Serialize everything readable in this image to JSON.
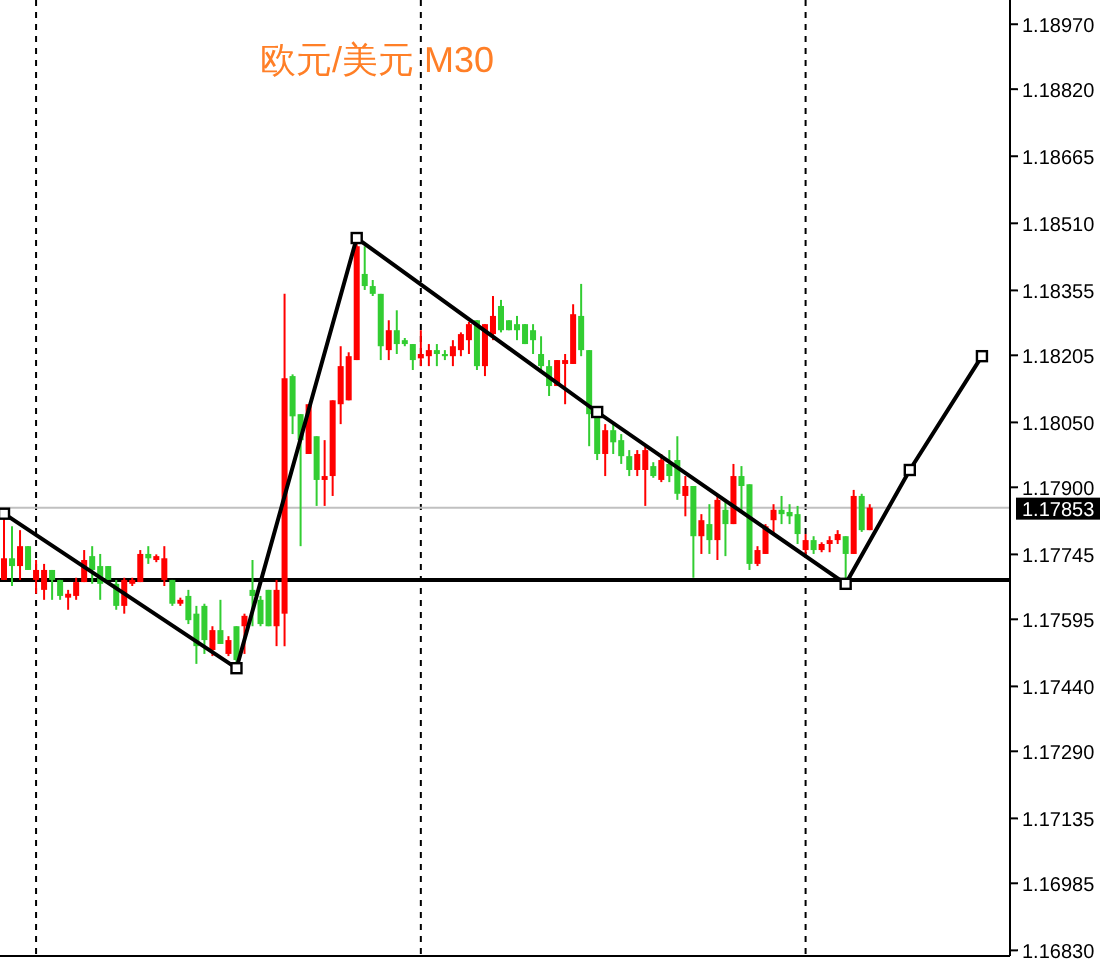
{
  "chart_data": {
    "type": "candlestick",
    "title": "欧元/美元 M30",
    "categories": [
      null,
      null,
      null,
      null,
      null,
      null,
      null,
      null,
      null,
      null,
      null,
      null,
      null,
      null,
      null,
      null,
      null,
      null,
      null,
      null,
      null,
      null,
      null,
      null,
      null,
      null,
      null,
      null,
      null,
      null,
      null,
      null,
      null,
      null,
      null,
      null,
      null,
      null,
      null,
      null,
      null,
      null,
      null,
      null,
      null,
      null,
      null,
      null,
      null,
      null,
      null,
      null,
      null,
      null,
      null,
      null,
      null,
      null,
      null,
      null,
      null,
      null,
      null,
      null,
      null,
      null,
      null,
      null,
      null,
      null,
      null,
      null,
      null,
      null,
      null,
      null,
      null,
      null,
      null,
      null,
      null,
      null,
      null,
      null,
      null,
      null,
      null,
      null,
      null,
      null,
      null,
      null,
      null,
      null,
      null,
      null,
      null,
      null,
      null,
      null,
      null,
      null,
      null,
      null,
      null,
      null,
      null,
      null,
      null,
      null,
      null,
      null,
      null,
      null,
      null,
      null,
      null,
      null,
      null,
      null,
      null,
      null,
      null,
      null,
      null,
      null
    ],
    "ohlc": [
      [
        1.17686,
        1.17833,
        1.17686,
        1.17736
      ],
      [
        1.17736,
        1.1781,
        1.17672,
        1.17718
      ],
      [
        1.17718,
        1.17801,
        1.17686,
        1.17764
      ],
      [
        1.17764,
        1.17764,
        1.17709,
        1.17709
      ],
      [
        1.17686,
        1.17732,
        1.17654,
        1.17709
      ],
      [
        1.17663,
        1.17723,
        1.1764,
        1.17709
      ],
      [
        1.17709,
        1.17709,
        1.1764,
        1.17686
      ],
      [
        1.17686,
        1.17686,
        1.1764,
        1.17649
      ],
      [
        1.17645,
        1.17663,
        1.17617,
        1.17654
      ],
      [
        1.17649,
        1.17691,
        1.1764,
        1.17681
      ],
      [
        1.17681,
        1.17755,
        1.17681,
        1.17732
      ],
      [
        1.17741,
        1.17764,
        1.17677,
        1.17709
      ],
      [
        1.17718,
        1.17746,
        1.1764,
        1.17677
      ],
      [
        1.17718,
        1.17718,
        1.17686,
        1.17686
      ],
      [
        1.17677,
        1.17686,
        1.17617,
        1.17626
      ],
      [
        1.17626,
        1.17691,
        1.17608,
        1.17686
      ],
      [
        1.17677,
        1.17691,
        1.17672,
        1.17686
      ],
      [
        1.17681,
        1.17755,
        1.17681,
        1.17746
      ],
      [
        1.17746,
        1.17764,
        1.17723,
        1.17736
      ],
      [
        1.17732,
        1.17745,
        1.17727,
        1.17741
      ],
      [
        1.17686,
        1.17764,
        1.17672,
        1.17736
      ],
      [
        1.17686,
        1.17686,
        1.17626,
        1.17631
      ],
      [
        1.17631,
        1.17645,
        1.17626,
        1.1764
      ],
      [
        1.17649,
        1.17663,
        1.17584,
        1.17593
      ],
      [
        1.17608,
        1.17626,
        1.17492,
        1.17533
      ],
      [
        1.17626,
        1.17631,
        1.17515,
        1.17547
      ],
      [
        1.17524,
        1.17579,
        1.1751,
        1.1757
      ],
      [
        1.1757,
        1.1764,
        1.17538,
        1.17538
      ],
      [
        1.17515,
        1.17556,
        1.1751,
        1.17547
      ],
      [
        1.17579,
        1.17579,
        1.17487,
        1.17501
      ],
      [
        1.17579,
        1.17608,
        1.17515,
        1.17603
      ],
      [
        1.17663,
        1.17732,
        1.17579,
        1.17649
      ],
      [
        1.1764,
        1.17649,
        1.17579,
        1.17584
      ],
      [
        1.17663,
        1.17663,
        1.17579,
        1.17579
      ],
      [
        1.17579,
        1.17686,
        1.17533,
        1.17663
      ],
      [
        1.17608,
        1.18347,
        1.17533,
        1.18152
      ],
      [
        1.18157,
        1.18161,
        1.18023,
        1.18064
      ],
      [
        1.18069,
        1.18069,
        1.17764,
        1.18009
      ],
      [
        1.17977,
        1.18092,
        1.17977,
        1.18092
      ],
      [
        1.18018,
        1.18018,
        1.17857,
        1.17917
      ],
      [
        1.17917,
        1.18009,
        1.17857,
        1.17926
      ],
      [
        1.17926,
        1.18101,
        1.1788,
        1.18101
      ],
      [
        1.18092,
        1.18226,
        1.18046,
        1.1818
      ],
      [
        1.18101,
        1.18212,
        1.18101,
        1.18203
      ],
      [
        1.18194,
        1.18476,
        1.18194,
        1.18457
      ],
      [
        1.18393,
        1.18457,
        1.18356,
        1.18365
      ],
      [
        1.18365,
        1.18379,
        1.18342,
        1.18347
      ],
      [
        1.18347,
        1.18347,
        1.18194,
        1.18226
      ],
      [
        1.18217,
        1.18286,
        1.18194,
        1.18263
      ],
      [
        1.18263,
        1.18309,
        1.18208,
        1.18231
      ],
      [
        1.1824,
        1.18245,
        1.18226,
        1.18231
      ],
      [
        1.18231,
        1.18231,
        1.18171,
        1.18194
      ],
      [
        1.18198,
        1.18263,
        1.1818,
        1.18208
      ],
      [
        1.18203,
        1.18231,
        1.1818,
        1.18217
      ],
      [
        1.18217,
        1.18231,
        1.1818,
        1.18208
      ],
      [
        1.18208,
        1.18217,
        1.18194,
        1.18203
      ],
      [
        1.18203,
        1.1824,
        1.1818,
        1.18226
      ],
      [
        1.18217,
        1.18258,
        1.18203,
        1.18254
      ],
      [
        1.1824,
        1.18282,
        1.18208,
        1.18277
      ],
      [
        1.18286,
        1.18286,
        1.18171,
        1.1818
      ],
      [
        1.1818,
        1.18277,
        1.18157,
        1.18277
      ],
      [
        1.18254,
        1.18342,
        1.1824,
        1.18296
      ],
      [
        1.18319,
        1.18333,
        1.18258,
        1.18263
      ],
      [
        1.18286,
        1.18286,
        1.18263,
        1.18263
      ],
      [
        1.18277,
        1.18296,
        1.1824,
        1.18263
      ],
      [
        1.18277,
        1.18277,
        1.18231,
        1.18231
      ],
      [
        1.18263,
        1.18277,
        1.18208,
        1.1824
      ],
      [
        1.18208,
        1.18249,
        1.18166,
        1.1818
      ],
      [
        1.1818,
        1.18194,
        1.18111,
        1.18134
      ],
      [
        1.18134,
        1.18194,
        1.18134,
        1.18194
      ],
      [
        1.18185,
        1.18208,
        1.18092,
        1.18194
      ],
      [
        1.18185,
        1.18323,
        1.18185,
        1.183
      ],
      [
        1.18296,
        1.1837,
        1.18203,
        1.18217
      ],
      [
        1.18217,
        1.18217,
        1.17995,
        1.18069
      ],
      [
        1.18069,
        1.18069,
        1.17963,
        1.17977
      ],
      [
        1.17977,
        1.18046,
        1.17926,
        1.18032
      ],
      [
        1.18032,
        1.18046,
        1.17977,
        1.18004
      ],
      [
        1.18009,
        1.18023,
        1.17954,
        1.17972
      ],
      [
        1.17972,
        1.17986,
        1.17926,
        1.1794
      ],
      [
        1.1794,
        1.17986,
        1.17926,
        1.17977
      ],
      [
        1.1794,
        1.17995,
        1.17857,
        1.17986
      ],
      [
        1.17949,
        1.17958,
        1.17922,
        1.17926
      ],
      [
        1.17917,
        1.17977,
        1.17912,
        1.17963
      ],
      [
        1.17954,
        1.17986,
        1.17912,
        1.17926
      ],
      [
        1.17963,
        1.18018,
        1.17871,
        1.17885
      ],
      [
        1.1788,
        1.17926,
        1.17833,
        1.17903
      ],
      [
        1.17903,
        1.17903,
        1.17691,
        1.17787
      ],
      [
        1.17787,
        1.17838,
        1.17746,
        1.17824
      ],
      [
        1.17815,
        1.17861,
        1.17746,
        1.17778
      ],
      [
        1.17778,
        1.1788,
        1.17732,
        1.17871
      ],
      [
        1.17848,
        1.17871,
        1.17741,
        1.17815
      ],
      [
        1.17815,
        1.17954,
        1.17815,
        1.17926
      ],
      [
        1.17926,
        1.17949,
        1.17848,
        1.17903
      ],
      [
        1.17907,
        1.17907,
        1.17709,
        1.17723
      ],
      [
        1.17723,
        1.17764,
        1.17718,
        1.17755
      ],
      [
        1.17746,
        1.17815,
        1.17746,
        1.1781
      ],
      [
        1.17824,
        1.17861,
        1.17792,
        1.17848
      ],
      [
        1.17848,
        1.1788,
        1.17815,
        1.17838
      ],
      [
        1.17843,
        1.17861,
        1.17815,
        1.17833
      ],
      [
        1.17838,
        1.17857,
        1.17769,
        1.17792
      ],
      [
        1.17755,
        1.17792,
        1.17746,
        1.17778
      ],
      [
        1.17778,
        1.17787,
        1.17746,
        1.17755
      ],
      [
        1.17755,
        1.17773,
        1.1775,
        1.17769
      ],
      [
        1.17769,
        1.17787,
        1.1775,
        1.17778
      ],
      [
        1.17778,
        1.17801,
        1.17769,
        1.17792
      ],
      [
        1.17787,
        1.17787,
        1.17681,
        1.17746
      ],
      [
        1.17746,
        1.17894,
        1.17746,
        1.1788
      ],
      [
        1.1788,
        1.17885,
        1.17797,
        1.17801
      ],
      [
        1.17801,
        1.17861,
        1.17801,
        1.17853
      ],
      null,
      null,
      null,
      null,
      null,
      null,
      null,
      null,
      null,
      null,
      null,
      null,
      null,
      null,
      null,
      null,
      null
    ],
    "colors": [
      "#ff0000",
      "#32cd32",
      "#ff0000",
      "#32cd32",
      "#ff0000",
      "#ff0000",
      "#32cd32",
      "#32cd32",
      "#ff0000",
      "#ff0000",
      "#ff0000",
      "#32cd32",
      "#32cd32",
      "#32cd32",
      "#32cd32",
      "#ff0000",
      "#ff0000",
      "#ff0000",
      "#32cd32",
      "#ff0000",
      "#ff0000",
      "#32cd32",
      "#ff0000",
      "#32cd32",
      "#32cd32",
      "#32cd32",
      "#ff0000",
      "#32cd32",
      "#ff0000",
      "#32cd32",
      "#ff0000",
      "#32cd32",
      "#32cd32",
      "#32cd32",
      "#ff0000",
      "#ff0000",
      "#32cd32",
      "#32cd32",
      "#ff0000",
      "#32cd32",
      "#ff0000",
      "#ff0000",
      "#ff0000",
      "#ff0000",
      "#ff0000",
      "#32cd32",
      "#32cd32",
      "#32cd32",
      "#ff0000",
      "#32cd32",
      "#32cd32",
      "#32cd32",
      "#ff0000",
      "#ff0000",
      "#32cd32",
      "#32cd32",
      "#ff0000",
      "#ff0000",
      "#ff0000",
      "#32cd32",
      "#ff0000",
      "#ff0000",
      "#32cd32",
      "#32cd32",
      "#32cd32",
      "#32cd32",
      "#32cd32",
      "#32cd32",
      "#32cd32",
      "#ff0000",
      "#ff0000",
      "#ff0000",
      "#32cd32",
      "#32cd32",
      "#32cd32",
      "#ff0000",
      "#32cd32",
      "#32cd32",
      "#32cd32",
      "#ff0000",
      "#ff0000",
      "#32cd32",
      "#ff0000",
      "#32cd32",
      "#32cd32",
      "#ff0000",
      "#32cd32",
      "#ff0000",
      "#32cd32",
      "#ff0000",
      "#32cd32",
      "#ff0000",
      "#32cd32",
      "#32cd32",
      "#ff0000",
      "#ff0000",
      "#ff0000",
      "#32cd32",
      "#32cd32",
      "#32cd32",
      "#ff0000",
      "#32cd32",
      "#ff0000",
      "#ff0000",
      "#ff0000",
      "#32cd32",
      "#ff0000",
      "#32cd32",
      "#ff0000",
      null,
      null,
      null,
      null,
      null,
      null,
      null,
      null,
      null,
      null,
      null,
      null,
      null,
      null,
      null,
      null,
      null
    ],
    "series": [
      {
        "type": "line",
        "color": "#000000",
        "marker": "square",
        "values": [
          1.17839,
          null,
          null,
          null,
          null,
          null,
          null,
          null,
          null,
          null,
          null,
          null,
          null,
          null,
          null,
          null,
          null,
          null,
          null,
          null,
          null,
          null,
          null,
          null,
          null,
          null,
          null,
          null,
          null,
          1.17482,
          null,
          null,
          null,
          null,
          null,
          null,
          null,
          null,
          null,
          null,
          null,
          null,
          null,
          null,
          1.18476,
          null,
          null,
          null,
          null,
          null,
          null,
          null,
          null,
          null,
          null,
          null,
          null,
          null,
          null,
          null,
          null,
          null,
          null,
          null,
          null,
          null,
          null,
          null,
          null,
          null,
          null,
          null,
          null,
          null,
          1.18074,
          null,
          null,
          null,
          null,
          null,
          null,
          null,
          null,
          null,
          null,
          null,
          null,
          null,
          null,
          null,
          null,
          null,
          null,
          null,
          null,
          null,
          null,
          null,
          null,
          null,
          null,
          null,
          null,
          null,
          null,
          1.17677,
          null,
          null,
          null,
          null,
          null,
          null,
          null,
          1.1794,
          null,
          null,
          null,
          null,
          null,
          null,
          null,
          null,
          1.18203,
          null,
          null,
          null
        ]
      }
    ],
    "ref_lines": [
      {
        "axis": "y",
        "value": 1.17686,
        "color": "#000000",
        "line_style": "solid"
      },
      {
        "axis": "y",
        "value": 1.17853,
        "label": "1.17853",
        "color": "#c0c0c0",
        "line_style": "solid"
      }
    ],
    "ylim": [
      1.16817,
      1.19026
    ],
    "yticks": [
      {
        "value": 1.1897,
        "label": "1.18970"
      },
      {
        "value": 1.1882,
        "label": "1.18820"
      },
      1.18665,
      {
        "value": 1.1851,
        "label": "1.18510"
      },
      1.18355,
      1.18205,
      {
        "value": 1.1805,
        "label": "1.18050"
      },
      {
        "value": 1.179,
        "label": "1.17900"
      },
      1.17745,
      1.17595,
      {
        "value": 1.1744,
        "label": "1.17440"
      },
      {
        "value": 1.1729,
        "label": "1.17290"
      },
      1.17135,
      1.16985,
      {
        "value": 1.1683,
        "label": "1.16830"
      }
    ],
    "tick_labels": "y",
    "grid": false
  }
}
